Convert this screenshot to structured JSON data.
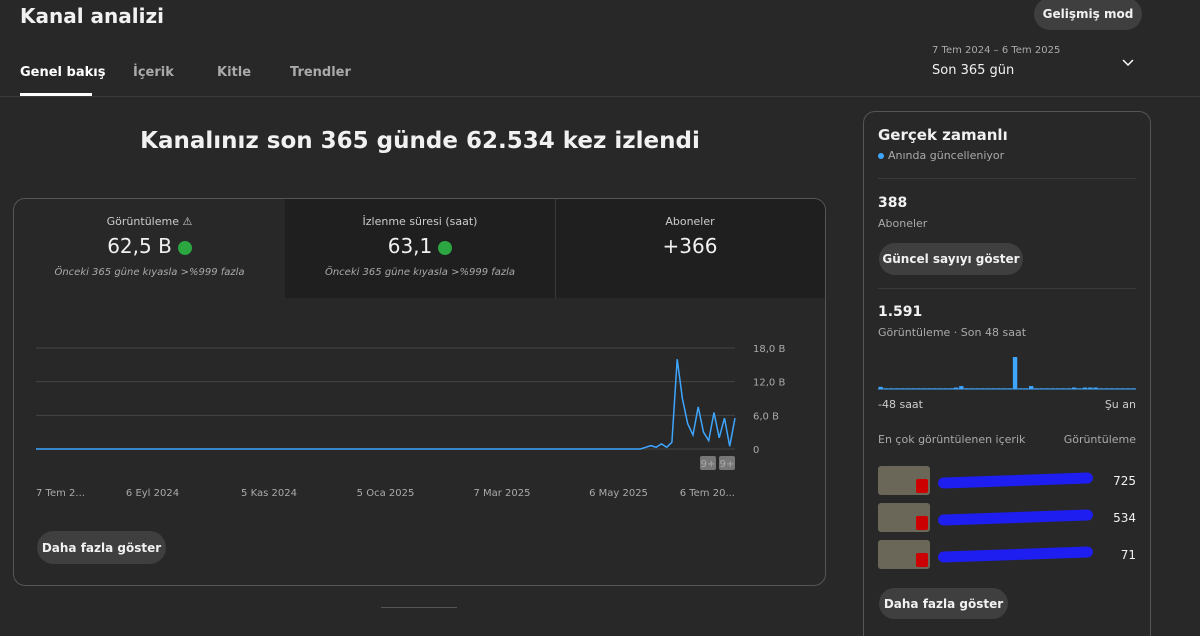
{
  "header": {
    "title": "Kanal analizi",
    "button": "Gelişmiş mod"
  },
  "tabs": [
    "Genel bakış",
    "İçerik",
    "Kitle",
    "Trendler"
  ],
  "date_range": {
    "dates": "7 Tem 2024 – 6 Tem 2025",
    "label": "Son 365 gün"
  },
  "headline": "Kanalınız son 365 günde 62.534 kez izlendi",
  "metrics": [
    {
      "label": "Görüntüleme",
      "value": "62,5 B",
      "comparison": "Önceki 365 güne kıyasla >%999 fazla"
    },
    {
      "label": "İzlenme süresi (saat)",
      "value": "63,1",
      "comparison": "Önceki 365 güne kıyasla >%999 fazla"
    },
    {
      "label": "Aboneler",
      "value": "+366"
    }
  ],
  "chart_data": {
    "type": "line",
    "color": "#3ea6ff",
    "x_labels": [
      "7 Tem 2...",
      "6 Eyl 2024",
      "5 Kas 2024",
      "5 Oca 2025",
      "7 Mar 2025",
      "6 May 2025",
      "6 Tem 20..."
    ],
    "ylim": [
      0,
      18000
    ],
    "yticks": [
      {
        "value": 18000,
        "label": "18,0 B"
      },
      {
        "value": 12000,
        "label": "12,0 B"
      },
      {
        "value": 6000,
        "label": "6,0 B"
      },
      0
    ],
    "grid": true,
    "values": [
      0,
      0,
      0,
      0,
      0,
      0,
      0,
      0,
      0,
      0,
      0,
      0,
      0,
      0,
      0,
      0,
      0,
      0,
      0,
      0,
      0,
      0,
      0,
      0,
      0,
      0,
      0,
      0,
      0,
      0,
      0,
      0,
      0,
      0,
      0,
      0,
      0,
      0,
      0,
      0,
      0,
      0,
      0,
      0,
      0,
      0,
      0,
      0,
      0,
      0,
      0,
      0,
      0,
      0,
      0,
      0,
      0,
      0,
      0,
      0,
      0,
      0,
      0,
      0,
      0,
      0,
      0,
      0,
      0,
      0,
      0,
      0,
      0,
      0,
      0,
      0,
      0,
      0,
      0,
      0,
      0,
      0,
      0,
      0,
      0,
      0,
      0,
      0,
      0,
      0,
      0,
      0,
      0,
      0,
      0,
      0,
      0,
      0,
      0,
      0,
      0,
      0,
      0,
      0,
      0,
      0,
      0,
      0,
      0,
      0,
      0,
      0,
      0,
      0,
      0,
      0,
      300,
      600,
      300,
      900,
      300,
      1200,
      16000,
      9000,
      4500,
      2500,
      7500,
      3000,
      1500,
      6500,
      2000,
      5500,
      500,
      5500
    ],
    "badges": [
      "9+",
      "9+"
    ]
  },
  "more_button": "Daha fazla göster",
  "realtime": {
    "title": "Gerçek zamanlı",
    "status": "Anında güncelleniyor",
    "subscribers": {
      "value": "388",
      "label": "Aboneler"
    },
    "button": "Güncel sayıyı göster",
    "views": {
      "value": "1.591",
      "label": "Görüntüleme · Son 48 saat"
    },
    "bar_values": [
      3,
      1,
      1,
      1,
      1,
      1,
      1,
      1,
      1,
      1,
      1,
      1,
      1,
      1,
      2,
      4,
      1,
      1,
      1,
      1,
      1,
      1,
      1,
      1,
      1,
      44,
      1,
      1,
      4,
      1,
      1,
      1,
      1,
      1,
      1,
      1,
      2,
      1,
      2,
      2,
      2,
      1,
      1,
      1,
      1,
      1,
      1,
      1
    ],
    "axis_start": "-48 saat",
    "axis_end": "Şu an",
    "top_content": {
      "title": "En çok görüntülenen içerik",
      "column": "Görüntüleme",
      "rows": [
        725,
        534,
        71
      ]
    },
    "more_button": "Daha fazla göster"
  }
}
